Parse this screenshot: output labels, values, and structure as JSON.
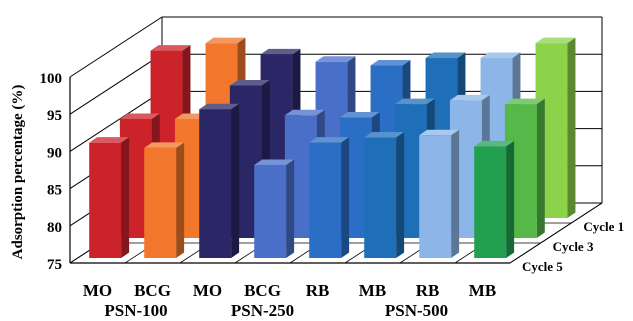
{
  "chart_data": {
    "type": "bar",
    "title": "",
    "ylabel": "Adsorption percentage (%)",
    "ylim": [
      75,
      100
    ],
    "yticks": [
      75,
      80,
      85,
      90,
      95,
      100
    ],
    "grid": true,
    "categories": [
      "MO",
      "BCG",
      "MO",
      "BCG",
      "RB",
      "MB",
      "RB",
      "MB"
    ],
    "groups": [
      {
        "label": "PSN-100",
        "categories": [
          "MO",
          "BCG"
        ]
      },
      {
        "label": "PSN-250",
        "categories": [
          "MO",
          "BCG",
          "RB"
        ]
      },
      {
        "label": "PSN-500",
        "categories": [
          "MB",
          "RB",
          "MB"
        ]
      }
    ],
    "category_colors": [
      "#cc2229",
      "#f2762b",
      "#2b2766",
      "#4a6fc9",
      "#2a6fc5",
      "#1e6fb8",
      "#8cb6e8",
      "#22a050"
    ],
    "series": [
      {
        "name": "Cycle 5",
        "values": [
          90.5,
          89.8,
          95.0,
          87.5,
          90.5,
          91.2,
          91.5,
          90.0
        ]
      },
      {
        "name": "Cycle 3",
        "values": [
          91.0,
          91.0,
          95.5,
          91.5,
          91.2,
          93.0,
          93.5,
          93.0
        ]
      },
      {
        "name": "Cycle 1",
        "values": [
          97.5,
          98.5,
          97.0,
          96.0,
          95.5,
          96.5,
          96.5,
          98.5
        ]
      }
    ],
    "extra_depth_note_colors": {
      "back_row_last": "#8cd24a"
    }
  }
}
